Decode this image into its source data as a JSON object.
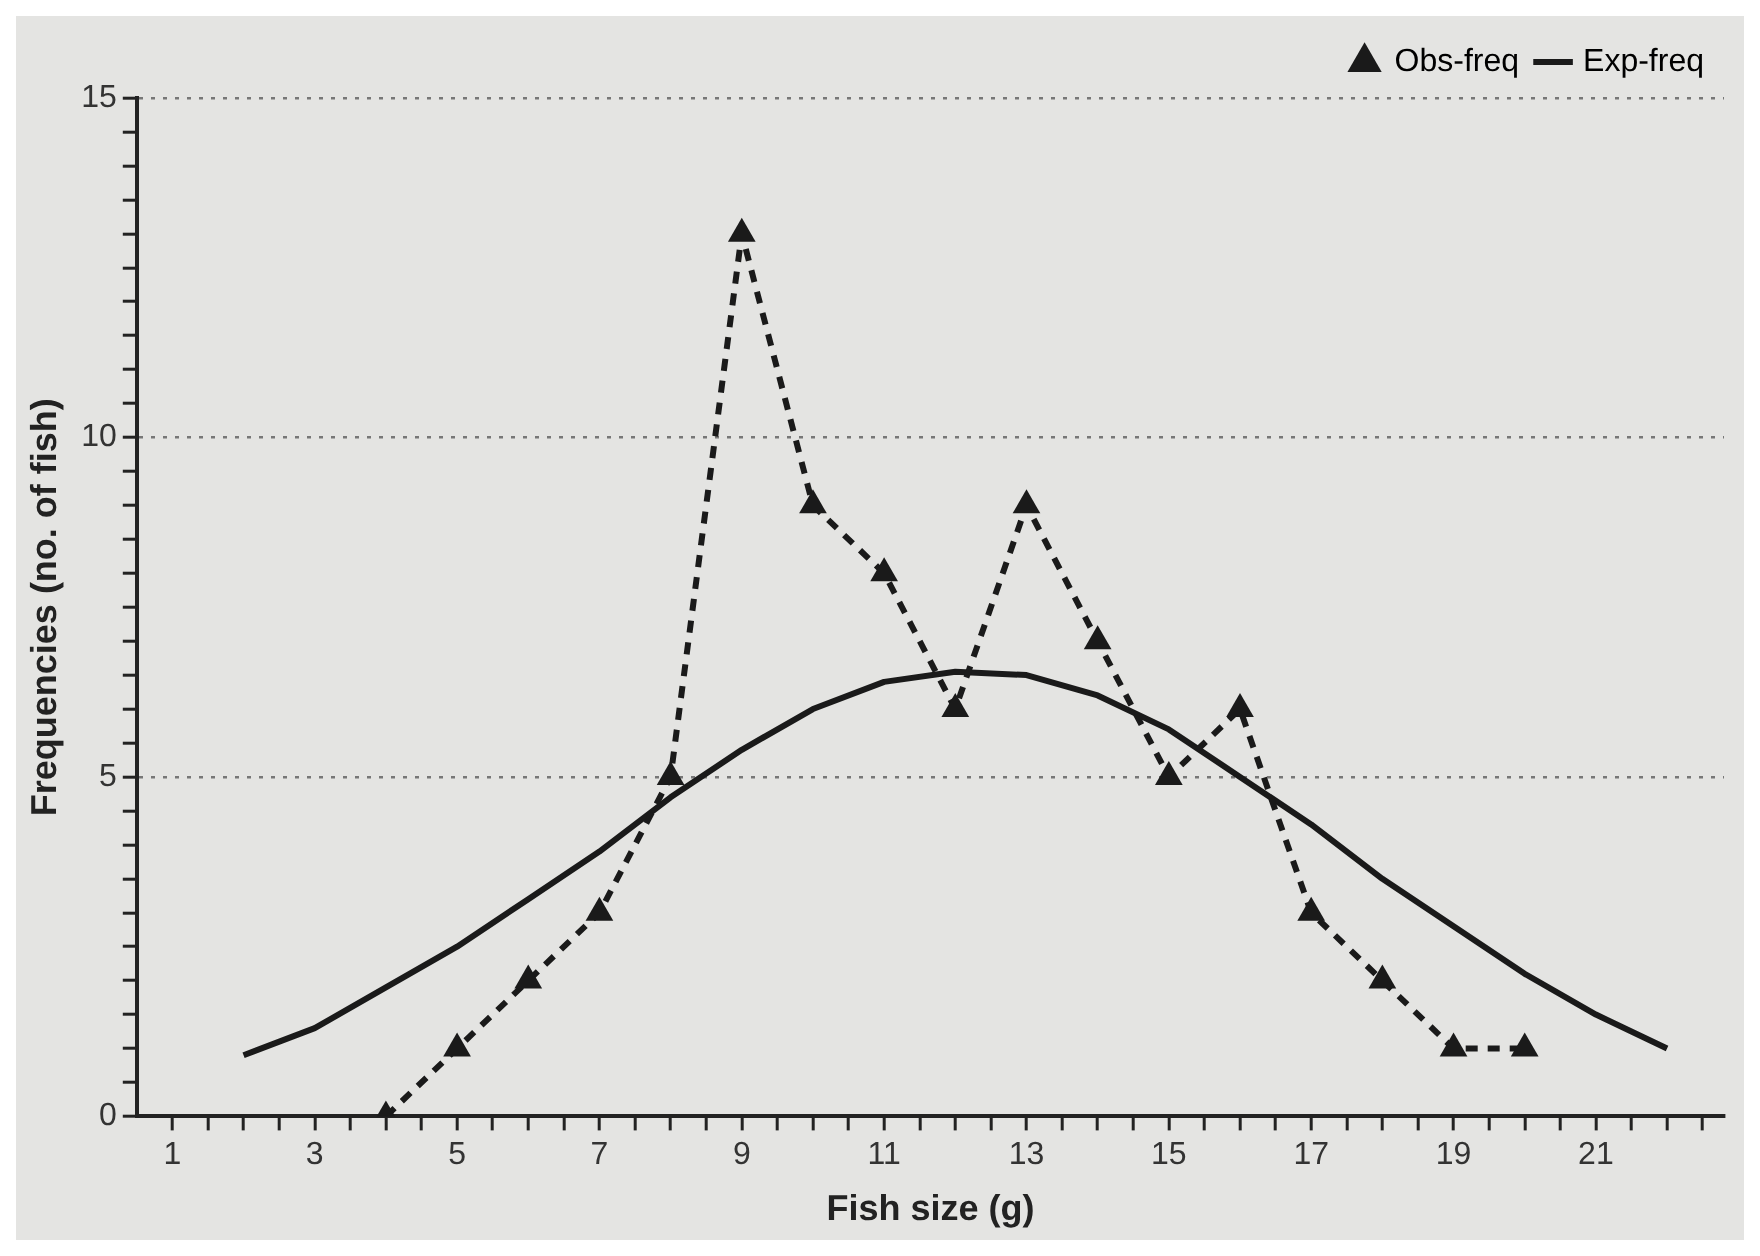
{
  "chart_data": {
    "type": "line",
    "xlabel": "Fish size (g)",
    "ylabel": "Frequencies (no. of fish)",
    "xlim": [
      0.5,
      22.8
    ],
    "xticks": [
      1,
      {
        "value": 1.5,
        "label": null
      },
      {
        "value": 2,
        "label": null
      },
      {
        "value": 2.5,
        "label": null
      },
      3,
      {
        "value": 3.5,
        "label": null
      },
      {
        "value": 4,
        "label": null
      },
      {
        "value": 4.5,
        "label": null
      },
      5,
      {
        "value": 5.5,
        "label": null
      },
      {
        "value": 6,
        "label": null
      },
      {
        "value": 6.5,
        "label": null
      },
      7,
      {
        "value": 7.5,
        "label": null
      },
      {
        "value": 8,
        "label": null
      },
      {
        "value": 8.5,
        "label": null
      },
      9,
      {
        "value": 9.5,
        "label": null
      },
      {
        "value": 10,
        "label": null
      },
      {
        "value": 10.5,
        "label": null
      },
      11,
      {
        "value": 11.5,
        "label": null
      },
      {
        "value": 12,
        "label": null
      },
      {
        "value": 12.5,
        "label": null
      },
      13,
      {
        "value": 13.5,
        "label": null
      },
      {
        "value": 14,
        "label": null
      },
      {
        "value": 14.5,
        "label": null
      },
      15,
      {
        "value": 15.5,
        "label": null
      },
      {
        "value": 16,
        "label": null
      },
      {
        "value": 16.5,
        "label": null
      },
      17,
      {
        "value": 17.5,
        "label": null
      },
      {
        "value": 18,
        "label": null
      },
      {
        "value": 18.5,
        "label": null
      },
      19,
      {
        "value": 19.5,
        "label": null
      },
      {
        "value": 20,
        "label": null
      },
      {
        "value": 20.5,
        "label": null
      },
      21,
      {
        "value": 21.5,
        "label": null
      },
      {
        "value": 22,
        "label": null
      },
      {
        "value": 22.5,
        "label": null
      }
    ],
    "ylim": [
      0,
      15
    ],
    "yticks": [
      0,
      {
        "value": 0.5,
        "label": null
      },
      {
        "value": 1,
        "label": null
      },
      {
        "value": 1.5,
        "label": null
      },
      {
        "value": 2,
        "label": null
      },
      {
        "value": 2.5,
        "label": null
      },
      {
        "value": 3,
        "label": null
      },
      {
        "value": 3.5,
        "label": null
      },
      {
        "value": 4,
        "label": null
      },
      {
        "value": 4.5,
        "label": null
      },
      5,
      {
        "value": 5.5,
        "label": null
      },
      {
        "value": 6,
        "label": null
      },
      {
        "value": 6.5,
        "label": null
      },
      {
        "value": 7,
        "label": null
      },
      {
        "value": 7.5,
        "label": null
      },
      {
        "value": 8,
        "label": null
      },
      {
        "value": 8.5,
        "label": null
      },
      {
        "value": 9,
        "label": null
      },
      {
        "value": 9.5,
        "label": null
      },
      10,
      {
        "value": 10.5,
        "label": null
      },
      {
        "value": 11,
        "label": null
      },
      {
        "value": 11.5,
        "label": null
      },
      {
        "value": 12,
        "label": null
      },
      {
        "value": 12.5,
        "label": null
      },
      {
        "value": 13,
        "label": null
      },
      {
        "value": 13.5,
        "label": null
      },
      {
        "value": 14,
        "label": null
      },
      {
        "value": 14.5,
        "label": null
      },
      15
    ],
    "grid": "y",
    "legend": "top right",
    "series": [
      {
        "name": "Obs-freq",
        "color": "#1a1a1a",
        "marker": "triangle",
        "line_style": "dashed",
        "x": [
          4,
          5,
          6,
          7,
          8,
          9,
          10,
          11,
          12,
          13,
          14,
          15,
          16,
          17,
          18,
          19,
          20
        ],
        "values": [
          0,
          1,
          2,
          3,
          5,
          13,
          9,
          8,
          6,
          9,
          7,
          5,
          6,
          3,
          2,
          1,
          1
        ]
      },
      {
        "name": "Exp-freq",
        "color": "#1a1a1a",
        "marker": "none",
        "line_style": "solid",
        "x": [
          2,
          3,
          4,
          5,
          6,
          7,
          8,
          9,
          10,
          11,
          12,
          13,
          14,
          15,
          16,
          17,
          18,
          19,
          20,
          21,
          22
        ],
        "values": [
          0.9,
          1.3,
          1.9,
          2.5,
          3.2,
          3.9,
          4.7,
          5.4,
          6.0,
          6.4,
          6.55,
          6.5,
          6.2,
          5.7,
          5.0,
          4.3,
          3.5,
          2.8,
          2.1,
          1.5,
          1.0
        ]
      }
    ]
  }
}
